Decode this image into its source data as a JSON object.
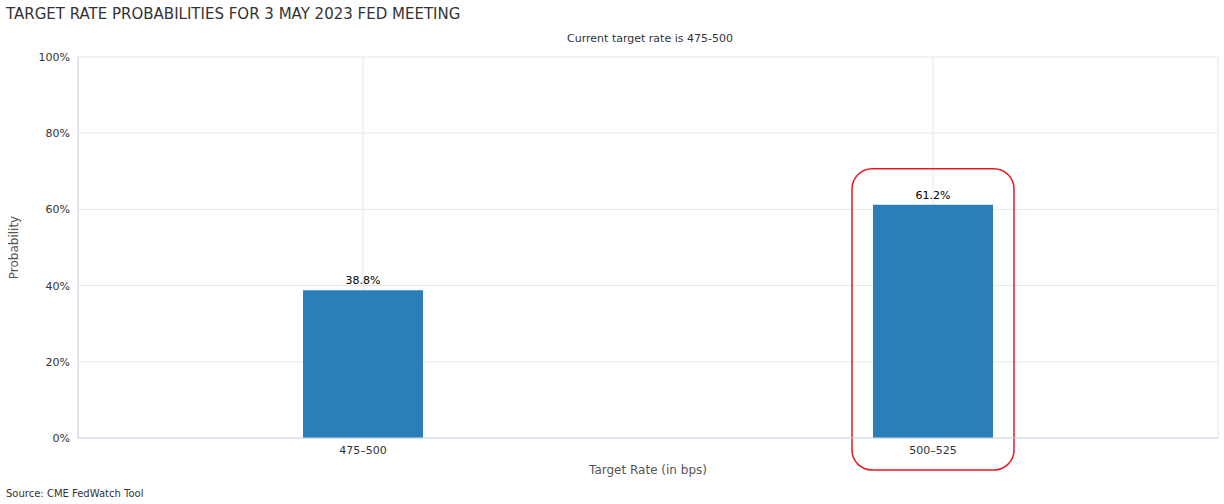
{
  "chart_data": {
    "type": "bar",
    "title": "TARGET RATE PROBABILITIES FOR 3 MAY 2023 FED MEETING",
    "subtitle": "Current target rate is 475-500",
    "x_label": "Target Rate (in bps)",
    "y_label": "Probability",
    "source": "Source: CME FedWatch Tool",
    "categories": [
      "475–500",
      "500–525"
    ],
    "values": [
      38.8,
      61.2
    ],
    "value_labels": [
      "38.8%",
      "61.2%"
    ],
    "color": "#2b7fb8",
    "ylim": [
      0,
      100
    ],
    "yticks": [
      {
        "value": 0,
        "label": "0%"
      },
      {
        "value": 20,
        "label": "20%"
      },
      {
        "value": 40,
        "label": "40%"
      },
      {
        "value": 60,
        "label": "60%"
      },
      {
        "value": 80,
        "label": "80%"
      },
      {
        "value": 100,
        "label": "100%"
      }
    ],
    "grid": true,
    "data_labels": true
  }
}
